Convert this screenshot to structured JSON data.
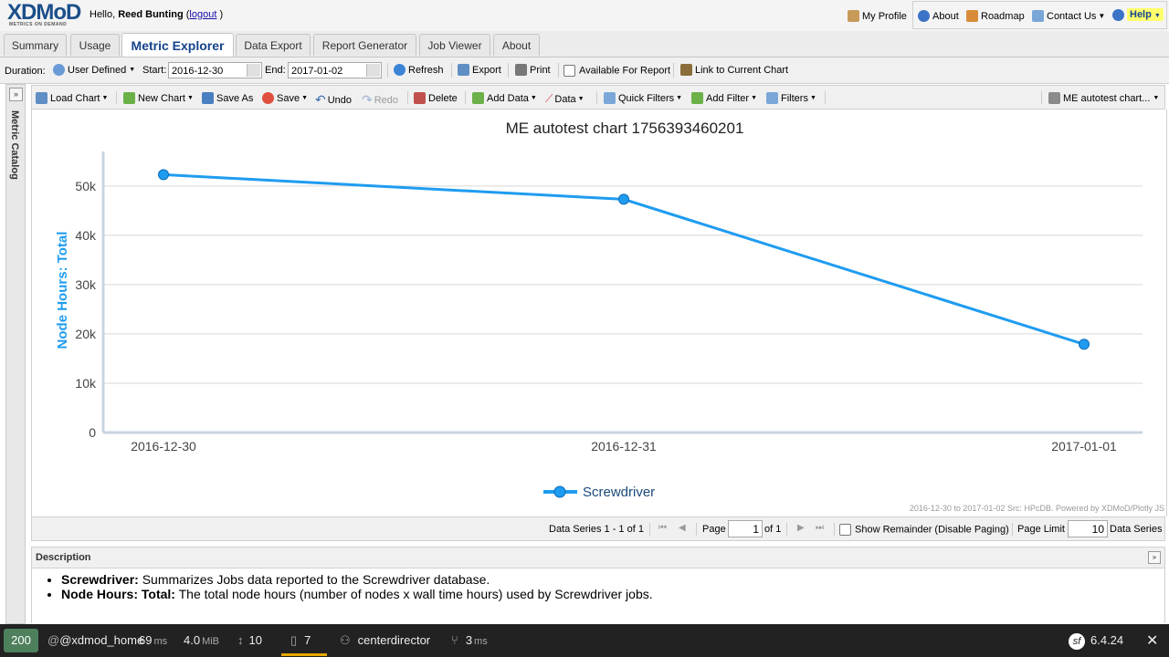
{
  "header": {
    "logo": "XDMoD",
    "logo_tagline": "METRICS ON DEMAND",
    "hello_prefix": "Hello,",
    "user_name": "Reed Bunting",
    "logout": "logout",
    "links": {
      "my_profile": "My Profile",
      "about": "About",
      "roadmap": "Roadmap",
      "contact": "Contact Us",
      "help": "Help"
    }
  },
  "tabs": [
    "Summary",
    "Usage",
    "Metric Explorer",
    "Data Export",
    "Report Generator",
    "Job Viewer",
    "About"
  ],
  "duration": {
    "label": "Duration:",
    "preset": "User Defined",
    "start_label": "Start:",
    "start": "2016-12-30",
    "end_label": "End:",
    "end": "2017-01-02",
    "refresh": "Refresh",
    "export": "Export",
    "print": "Print",
    "available_for_report": "Available For Report",
    "link_current_chart": "Link to Current Chart"
  },
  "catalog": {
    "title": "Metric Catalog"
  },
  "chart_toolbar": {
    "load_chart": "Load Chart",
    "new_chart": "New Chart",
    "save_as": "Save As",
    "save": "Save",
    "undo": "Undo",
    "redo": "Redo",
    "delete": "Delete",
    "add_data": "Add Data",
    "data": "Data",
    "quick_filters": "Quick Filters",
    "add_filter": "Add Filter",
    "filters": "Filters",
    "chart_name_menu": "ME autotest chart..."
  },
  "chart_data": {
    "type": "line",
    "title": "ME autotest chart 1756393460201",
    "xlabel": "",
    "ylabel": "Node Hours: Total",
    "categories": [
      "2016-12-30",
      "2016-12-31",
      "2017-01-01"
    ],
    "series": [
      {
        "name": "Screwdriver",
        "values": [
          52300,
          47300,
          17900
        ],
        "color": "#1f9cf0"
      }
    ],
    "ylim": [
      0,
      57000
    ],
    "yticks": [
      0,
      10000,
      20000,
      30000,
      40000,
      50000
    ],
    "ytick_labels": [
      "0",
      "10k",
      "20k",
      "30k",
      "40k",
      "50k"
    ],
    "grid": true,
    "legend": "bottom-center",
    "credit": "2016-12-30 to 2017-01-02  Src: HPcDB. Powered by XDMoD/Plotly JS"
  },
  "paging": {
    "summary": "Data Series 1 - 1 of 1",
    "page_label": "Page",
    "page": "1",
    "of": "of 1",
    "show_remainder": "Show Remainder (Disable Paging)",
    "page_limit_label": "Page Limit",
    "page_limit": "10",
    "data_series": "Data Series"
  },
  "description": {
    "title": "Description",
    "items": [
      {
        "term": "Screwdriver:",
        "text": " Summarizes Jobs data reported to the Screwdriver database."
      },
      {
        "term": "Node Hours: Total:",
        "text": " The total node hours (number of nodes x wall time hours) used by Screwdriver jobs."
      }
    ]
  },
  "debug_bar": {
    "status": "200",
    "route": "@xdmod_home",
    "time": "69",
    "time_unit": "ms",
    "memory": "4.0",
    "memory_unit": "MiB",
    "requests": "10",
    "files": "7",
    "user": "centerdirector",
    "db_time": "3",
    "db_unit": "ms",
    "version": "6.4.24"
  },
  "colors": {
    "accent": "#15428b",
    "series": "#1f9cf0",
    "status_ok": "#4f805d",
    "help_bg": "#ffff6e"
  }
}
